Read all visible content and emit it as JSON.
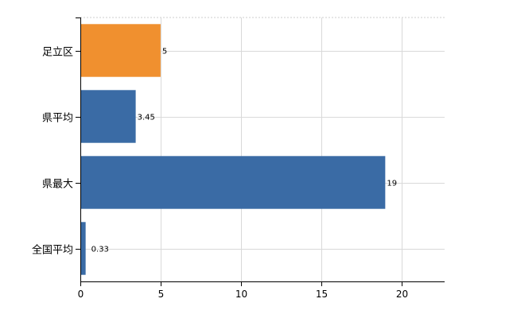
{
  "chart_data": {
    "type": "bar",
    "orientation": "horizontal",
    "categories": [
      "足立区",
      "県平均",
      "県最大",
      "全国平均"
    ],
    "values": [
      5,
      3.45,
      19,
      0.33
    ],
    "value_labels": [
      "5",
      "3.45",
      "19",
      "0.33"
    ],
    "bar_colors": [
      "#F0902F",
      "#3A6BA5",
      "#3A6BA5",
      "#3A6BA5"
    ],
    "xlim": [
      0,
      22.7
    ],
    "xticks": [
      0,
      5,
      10,
      15,
      20
    ],
    "xtick_labels": [
      "0",
      "5",
      "10",
      "15",
      "20"
    ],
    "grid": "on",
    "title": "",
    "xlabel": "",
    "ylabel": ""
  }
}
